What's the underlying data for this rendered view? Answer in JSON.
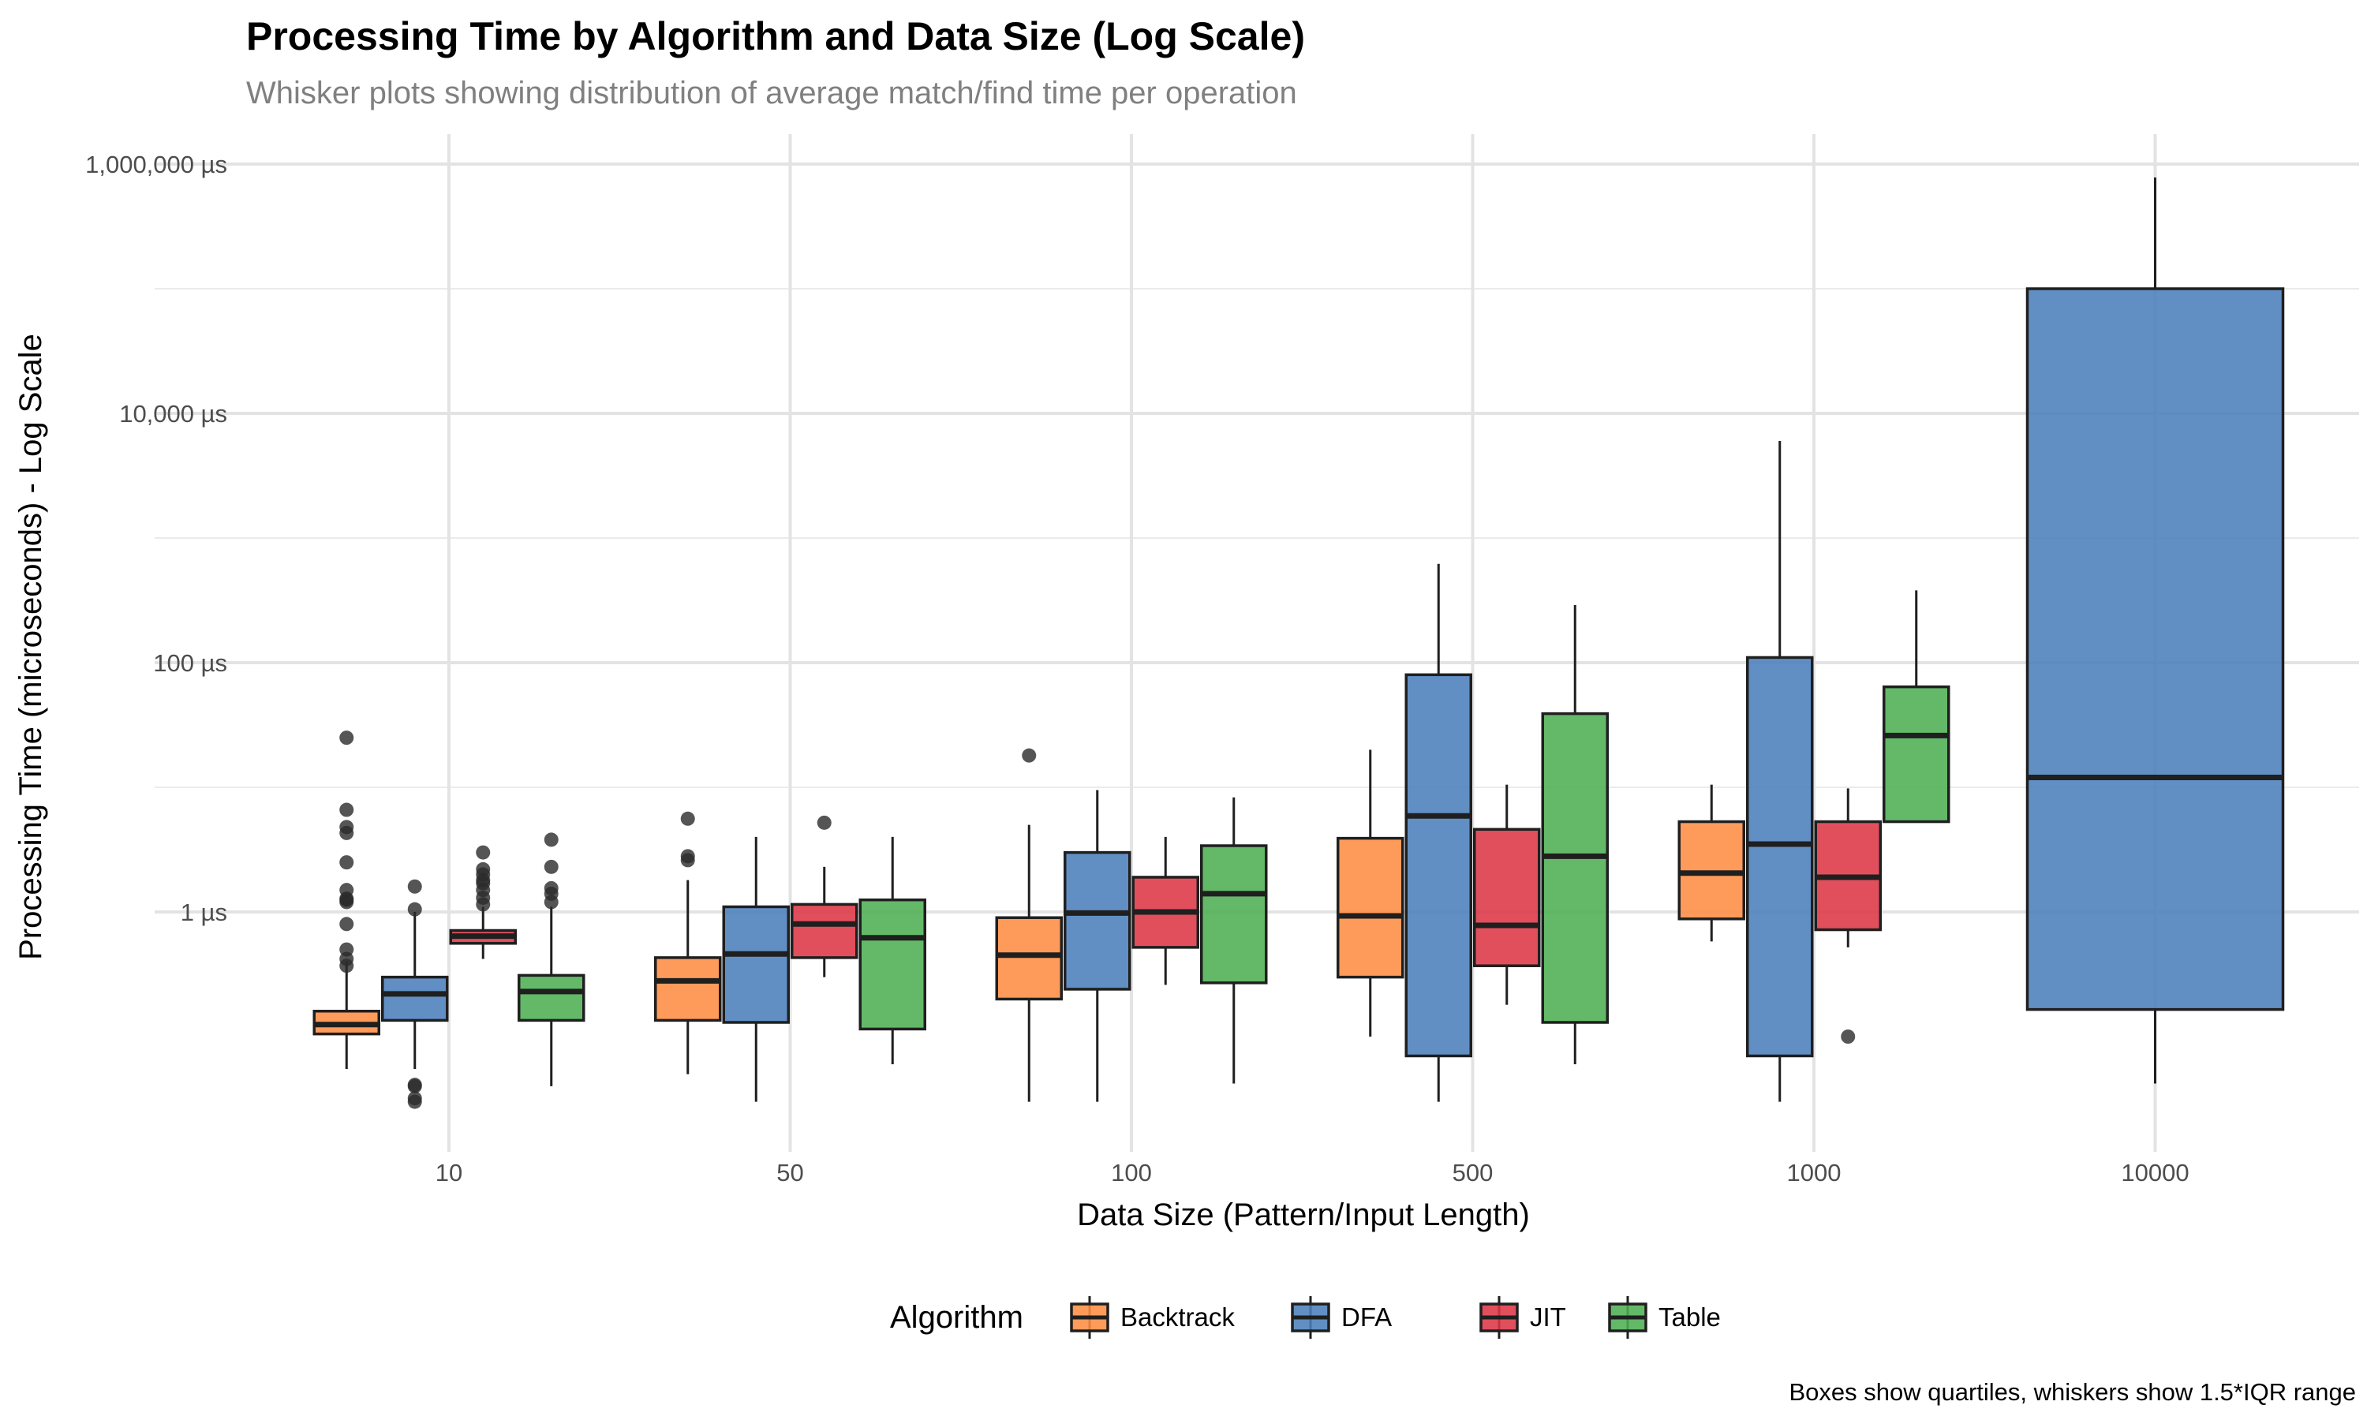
{
  "chart_data": {
    "type": "boxplot",
    "title": "Processing Time by Algorithm and Data Size (Log Scale)",
    "subtitle": "Whisker plots showing distribution of average match/find time per operation",
    "xlabel": "Data Size (Pattern/Input Length)",
    "ylabel": "Processing Time (microseconds) - Log Scale",
    "caption": "Boxes show quartiles, whiskers show 1.5*IQR range",
    "y_scale": "log10",
    "ylim": [
      0.012,
      1000000
    ],
    "y_ticks": [
      {
        "value": 1,
        "label": "1 µs"
      },
      {
        "value": 100,
        "label": "100 µs"
      },
      {
        "value": 10000,
        "label": "10,000 µs"
      },
      {
        "value": 1000000,
        "label": "1,000,000 µs"
      }
    ],
    "categories": [
      "10",
      "50",
      "100",
      "500",
      "1000",
      "10000"
    ],
    "grid": true,
    "legend": {
      "title": "Algorithm",
      "position": "bottom"
    },
    "series": [
      {
        "name": "Backtrack",
        "color": "#FF8C42"
      },
      {
        "name": "DFA",
        "color": "#4A7EBB"
      },
      {
        "name": "JIT",
        "color": "#DC3545"
      },
      {
        "name": "Table",
        "color": "#4CAF50"
      }
    ],
    "boxes": [
      {
        "category": "10",
        "series": "Backtrack",
        "whisker_low": 0.055,
        "q1": 0.105,
        "median": 0.125,
        "q3": 0.16,
        "whisker_high": 0.4,
        "outliers": [
          0.37,
          0.42,
          0.5,
          0.8,
          1.2,
          1.25,
          1.28,
          1.5,
          2.5,
          4.3,
          4.8,
          6.6,
          25
        ]
      },
      {
        "category": "10",
        "series": "DFA",
        "whisker_low": 0.055,
        "q1": 0.135,
        "median": 0.22,
        "q3": 0.3,
        "whisker_high": 1.0,
        "outliers": [
          0.03,
          0.032,
          0.04,
          0.041,
          1.05,
          1.6
        ]
      },
      {
        "category": "10",
        "series": "JIT",
        "whisker_low": 0.42,
        "q1": 0.56,
        "median": 0.64,
        "q3": 0.71,
        "whisker_high": 1.1,
        "outliers": [
          1.15,
          1.3,
          1.5,
          1.7,
          1.8,
          2.0,
          2.2,
          3.0
        ]
      },
      {
        "category": "10",
        "series": "Table",
        "whisker_low": 0.04,
        "q1": 0.135,
        "median": 0.23,
        "q3": 0.31,
        "whisker_high": 1.1,
        "outliers": [
          1.2,
          1.4,
          1.55,
          2.3,
          3.8
        ]
      },
      {
        "category": "50",
        "series": "Backtrack",
        "whisker_low": 0.05,
        "q1": 0.135,
        "median": 0.28,
        "q3": 0.43,
        "whisker_high": 1.8,
        "outliers": [
          2.6,
          2.8,
          5.6
        ]
      },
      {
        "category": "50",
        "series": "DFA",
        "whisker_low": 0.03,
        "q1": 0.13,
        "median": 0.46,
        "q3": 1.1,
        "whisker_high": 4.0,
        "outliers": []
      },
      {
        "category": "50",
        "series": "JIT",
        "whisker_low": 0.3,
        "q1": 0.43,
        "median": 0.8,
        "q3": 1.15,
        "whisker_high": 2.3,
        "outliers": [
          5.2
        ]
      },
      {
        "category": "50",
        "series": "Table",
        "whisker_low": 0.06,
        "q1": 0.115,
        "median": 0.62,
        "q3": 1.25,
        "whisker_high": 4.0,
        "outliers": []
      },
      {
        "category": "100",
        "series": "Backtrack",
        "whisker_low": 0.03,
        "q1": 0.2,
        "median": 0.45,
        "q3": 0.9,
        "whisker_high": 5.0,
        "outliers": [
          18
        ]
      },
      {
        "category": "100",
        "series": "DFA",
        "whisker_low": 0.03,
        "q1": 0.24,
        "median": 0.98,
        "q3": 3.0,
        "whisker_high": 9.5,
        "outliers": []
      },
      {
        "category": "100",
        "series": "JIT",
        "whisker_low": 0.26,
        "q1": 0.52,
        "median": 1.0,
        "q3": 1.9,
        "whisker_high": 4.0,
        "outliers": []
      },
      {
        "category": "100",
        "series": "Table",
        "whisker_low": 0.042,
        "q1": 0.27,
        "median": 1.4,
        "q3": 3.4,
        "whisker_high": 8.3,
        "outliers": []
      },
      {
        "category": "500",
        "series": "Backtrack",
        "whisker_low": 0.1,
        "q1": 0.3,
        "median": 0.93,
        "q3": 3.9,
        "whisker_high": 20,
        "outliers": []
      },
      {
        "category": "500",
        "series": "DFA",
        "whisker_low": 0.03,
        "q1": 0.07,
        "median": 5.9,
        "q3": 80,
        "whisker_high": 620,
        "outliers": []
      },
      {
        "category": "500",
        "series": "JIT",
        "whisker_low": 0.18,
        "q1": 0.37,
        "median": 0.78,
        "q3": 4.6,
        "whisker_high": 10.5,
        "outliers": []
      },
      {
        "category": "500",
        "series": "Table",
        "whisker_low": 0.06,
        "q1": 0.13,
        "median": 2.8,
        "q3": 39,
        "whisker_high": 290,
        "outliers": []
      },
      {
        "category": "1000",
        "series": "Backtrack",
        "whisker_low": 0.58,
        "q1": 0.88,
        "median": 2.05,
        "q3": 5.3,
        "whisker_high": 10.5,
        "outliers": []
      },
      {
        "category": "1000",
        "series": "DFA",
        "whisker_low": 0.03,
        "q1": 0.07,
        "median": 3.5,
        "q3": 110,
        "whisker_high": 6000,
        "outliers": []
      },
      {
        "category": "1000",
        "series": "JIT",
        "whisker_low": 0.52,
        "q1": 0.72,
        "median": 1.9,
        "q3": 5.3,
        "whisker_high": 9.8,
        "outliers": [
          0.1
        ]
      },
      {
        "category": "1000",
        "series": "Table",
        "whisker_low": 5.3,
        "q1": 5.3,
        "median": 26,
        "q3": 64,
        "whisker_high": 380,
        "outliers": []
      },
      {
        "category": "10000",
        "series": "DFA",
        "whisker_low": 0.042,
        "q1": 0.165,
        "median": 12,
        "q3": 100000,
        "whisker_high": 780000,
        "outliers": []
      }
    ]
  }
}
